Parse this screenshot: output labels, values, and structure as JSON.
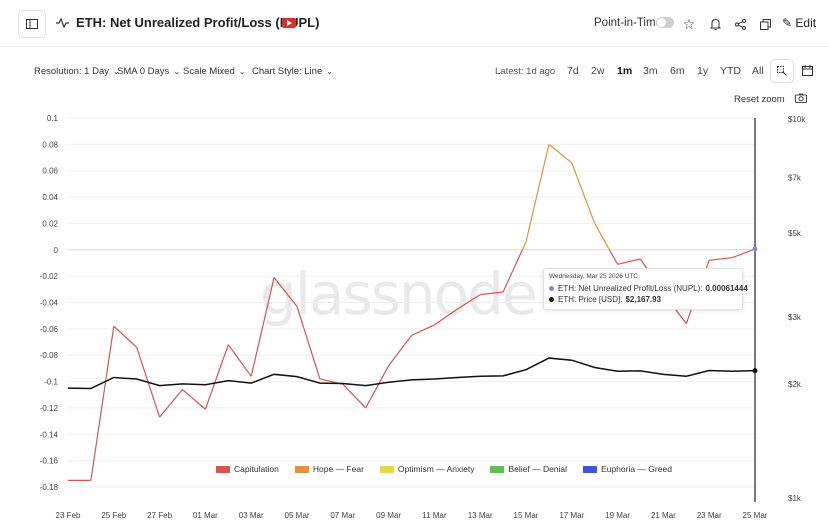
{
  "header": {
    "title": "ETH: Net Unrealized Profit/Loss (NUPL)",
    "point_in_time_label": "Point-in-Time",
    "edit_label": "Edit"
  },
  "controls": {
    "resolution": "Resolution: 1 Day",
    "sma": "SMA 0 Days",
    "scale": "Scale Mixed",
    "chart_style": "Chart Style: Line",
    "latest": "Latest: 1d ago",
    "ranges": [
      "7d",
      "2w",
      "1m",
      "3m",
      "6m",
      "1y",
      "YTD",
      "All"
    ],
    "active_range": "1m",
    "reset_zoom": "Reset zoom"
  },
  "tooltip": {
    "date": "Wednesday, Mar 25 2026 UTC",
    "row1_label": "ETH: Net Unrealized Profit/Loss (NUPL):",
    "row1_value": "0.00061444",
    "row2_label": "ETH: Price [USD]:",
    "row2_value": "$2,167.93",
    "row1_color": "#8e83d6",
    "row2_color": "#111111"
  },
  "watermark": "glassnode",
  "chart_data": {
    "type": "line",
    "x": [
      "23 Feb",
      "24 Feb",
      "25 Feb",
      "26 Feb",
      "27 Feb",
      "28 Feb",
      "01 Mar",
      "02 Mar",
      "03 Mar",
      "04 Mar",
      "05 Mar",
      "06 Mar",
      "07 Mar",
      "08 Mar",
      "09 Mar",
      "10 Mar",
      "11 Mar",
      "12 Mar",
      "13 Mar",
      "14 Mar",
      "15 Mar",
      "16 Mar",
      "17 Mar",
      "18 Mar",
      "19 Mar",
      "20 Mar",
      "21 Mar",
      "22 Mar",
      "23 Mar",
      "24 Mar",
      "25 Mar"
    ],
    "x_ticks": [
      "23 Feb",
      "25 Feb",
      "27 Feb",
      "01 Mar",
      "03 Mar",
      "05 Mar",
      "07 Mar",
      "09 Mar",
      "11 Mar",
      "13 Mar",
      "15 Mar",
      "17 Mar",
      "19 Mar",
      "21 Mar",
      "23 Mar",
      "25 Mar"
    ],
    "series": [
      {
        "axis": "left",
        "values": [
          -0.175,
          -0.175,
          -0.058,
          -0.074,
          -0.127,
          -0.106,
          -0.121,
          -0.072,
          -0.096,
          -0.021,
          -0.043,
          -0.098,
          -0.102,
          -0.12,
          -0.088,
          -0.065,
          -0.057,
          -0.045,
          -0.034,
          -0.032,
          0.006,
          0.08,
          0.066,
          0.02,
          -0.011,
          -0.007,
          -0.033,
          -0.056,
          -0.008,
          -0.006,
          0.0006
        ]
      },
      {
        "axis": "right",
        "values": [
          1950,
          1945,
          2080,
          2060,
          1980,
          2000,
          1990,
          2040,
          2010,
          2120,
          2090,
          2010,
          2005,
          1980,
          2020,
          2050,
          2060,
          2080,
          2095,
          2100,
          2180,
          2340,
          2310,
          2210,
          2160,
          2165,
          2120,
          2095,
          2170,
          2160,
          2167.93
        ]
      }
    ],
    "zones": [
      {
        "name": "Capitulation",
        "color": "#d9534f",
        "max": 0
      },
      {
        "name": "Hope — Fear",
        "color": "#e8913a",
        "max": 0.25
      },
      {
        "name": "Optimism — Anxiety",
        "color": "#e6d84a",
        "max": 0.5
      },
      {
        "name": "Belief — Denial",
        "color": "#5cc04a",
        "max": 0.75
      },
      {
        "name": "Euphoria — Greed",
        "color": "#4055d8",
        "max": 1
      }
    ],
    "y_left": {
      "min": -0.18,
      "max": 0.1,
      "ticks": [
        0.1,
        0.08,
        0.06,
        0.04,
        0.02,
        0,
        -0.02,
        -0.04,
        -0.06,
        -0.08,
        -0.1,
        -0.12,
        -0.14,
        -0.16,
        -0.18
      ]
    },
    "y_right": {
      "scale": "log",
      "min": 1000,
      "max": 10000,
      "ticks": [
        10000,
        7000,
        5000,
        3000,
        2000,
        1000
      ],
      "tick_labels": [
        "$10k",
        "$7k",
        "$5k",
        "$3k",
        "$2k",
        "$1k"
      ]
    },
    "grid": true,
    "legend_placement": "bottom"
  }
}
